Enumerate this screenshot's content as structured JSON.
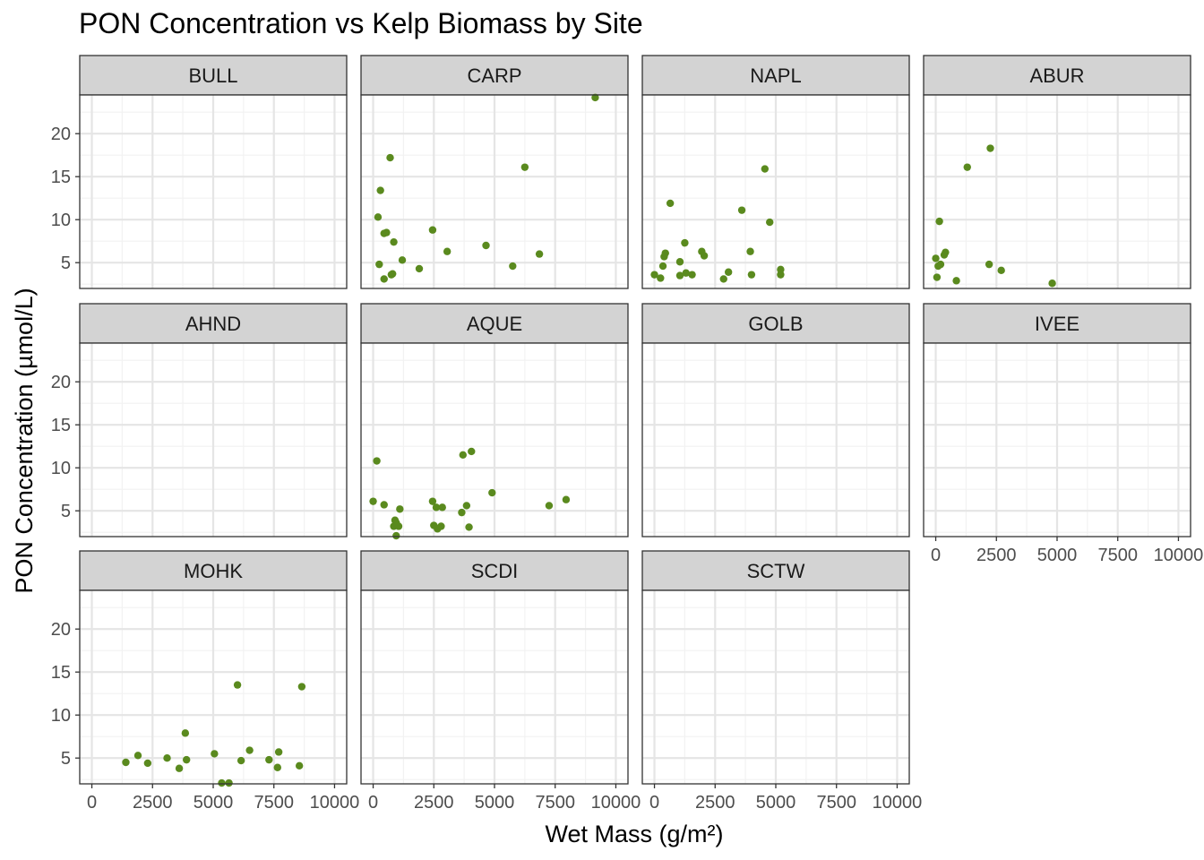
{
  "title": "PON Concentration vs Kelp Biomass by Site",
  "chart_data": {
    "type": "scatter",
    "title": "PON Concentration vs Kelp Biomass by Site",
    "xlabel": "Wet Mass (g/m²)",
    "ylabel": "PON Concentration (µmol/L)",
    "xlim": [
      -500,
      10500
    ],
    "ylim": [
      2,
      24.5
    ],
    "x_ticks": [
      0,
      2500,
      5000,
      7500,
      10000
    ],
    "x_tick_labels": [
      "0",
      "2500",
      "5000",
      "7500",
      "10000"
    ],
    "y_ticks": [
      5,
      10,
      15,
      20
    ],
    "y_tick_labels": [
      "5",
      "10",
      "15",
      "20"
    ],
    "grid": true,
    "point_color": "#5a8a1e",
    "strip_fill": "#d3d3d3",
    "facets": [
      {
        "site": "BULL",
        "x": [],
        "y": []
      },
      {
        "site": "CARP",
        "x": [
          200,
          300,
          450,
          550,
          700,
          750,
          800,
          850,
          1200,
          1900,
          2450,
          3050,
          4650,
          5750,
          6250,
          6850,
          9150,
          250,
          450
        ],
        "y": [
          10.3,
          13.4,
          8.4,
          8.5,
          17.2,
          3.6,
          3.7,
          7.4,
          5.3,
          4.3,
          8.8,
          6.3,
          7.0,
          4.6,
          16.1,
          6.0,
          24.2,
          4.8,
          3.1
        ]
      },
      {
        "site": "NAPL",
        "x": [
          0,
          250,
          350,
          400,
          450,
          650,
          1050,
          1050,
          1250,
          1300,
          1550,
          1950,
          2050,
          2850,
          3050,
          3600,
          3950,
          4000,
          4550,
          4750,
          5200,
          5200
        ],
        "y": [
          3.6,
          3.2,
          4.6,
          5.7,
          6.1,
          11.9,
          3.5,
          5.1,
          7.3,
          3.8,
          3.6,
          6.3,
          5.8,
          3.1,
          3.9,
          11.1,
          6.3,
          3.6,
          15.9,
          9.7,
          3.6,
          4.2
        ]
      },
      {
        "site": "ABUR",
        "x": [
          0,
          50,
          100,
          150,
          200,
          350,
          400,
          850,
          1300,
          2200,
          2250,
          2700,
          4800
        ],
        "y": [
          5.5,
          3.3,
          4.6,
          9.8,
          4.8,
          5.9,
          6.2,
          2.9,
          16.1,
          4.8,
          18.3,
          4.1,
          2.6
        ]
      },
      {
        "site": "AHND",
        "x": [],
        "y": []
      },
      {
        "site": "AQUE",
        "x": [
          0,
          150,
          450,
          850,
          900,
          950,
          1050,
          1100,
          2450,
          2500,
          2600,
          2650,
          2800,
          2850,
          3650,
          3700,
          3850,
          3950,
          4050,
          4900,
          7250,
          7950,
          950
        ],
        "y": [
          6.1,
          10.8,
          5.7,
          3.2,
          3.9,
          3.6,
          3.2,
          5.2,
          6.1,
          3.3,
          5.4,
          2.9,
          3.2,
          5.4,
          4.8,
          11.5,
          5.6,
          3.1,
          11.9,
          7.1,
          5.6,
          6.3,
          2.1
        ]
      },
      {
        "site": "GOLB",
        "x": [],
        "y": []
      },
      {
        "site": "IVEE",
        "x": [],
        "y": []
      },
      {
        "site": "MOHK",
        "x": [
          1400,
          1900,
          2300,
          3100,
          3600,
          3850,
          3900,
          5050,
          5350,
          5650,
          6000,
          6150,
          6500,
          7300,
          7650,
          7700,
          8550,
          8650
        ],
        "y": [
          4.5,
          5.3,
          4.4,
          5.0,
          3.8,
          7.9,
          4.8,
          5.5,
          2.1,
          2.1,
          13.5,
          4.7,
          5.9,
          4.8,
          3.9,
          5.7,
          4.1,
          13.3
        ]
      },
      {
        "site": "SCDI",
        "x": [],
        "y": []
      },
      {
        "site": "SCTW",
        "x": [],
        "y": []
      }
    ]
  }
}
